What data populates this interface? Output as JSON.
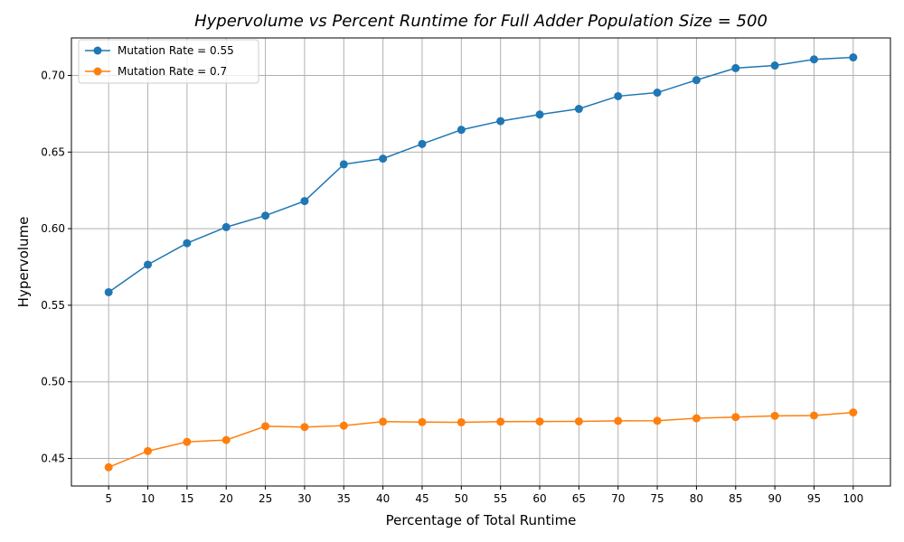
{
  "chart_data": {
    "type": "line",
    "title": "Hypervolume vs Percent Runtime for Full Adder Population Size = 500",
    "xlabel": "Percentage of Total Runtime",
    "ylabel": "Hypervolume",
    "x": [
      5,
      10,
      15,
      20,
      25,
      30,
      35,
      40,
      45,
      50,
      55,
      60,
      65,
      70,
      75,
      80,
      85,
      90,
      95,
      100
    ],
    "xticks": [
      "5",
      "10",
      "15",
      "20",
      "25",
      "30",
      "35",
      "40",
      "45",
      "50",
      "55",
      "60",
      "65",
      "70",
      "75",
      "80",
      "85",
      "90",
      "95",
      "100"
    ],
    "yticks": [
      "0.45",
      "0.50",
      "0.55",
      "0.60",
      "0.65",
      "0.70"
    ],
    "ytick_values": [
      0.45,
      0.5,
      0.55,
      0.6,
      0.65,
      0.7
    ],
    "xlim": [
      0.25,
      104.75
    ],
    "ylim": [
      0.432,
      0.7245
    ],
    "grid": true,
    "legend_position": "top-left",
    "series": [
      {
        "name": "Mutation Rate = 0.55",
        "color": "#1f77b4",
        "values": [
          0.5585,
          0.5765,
          0.5905,
          0.601,
          0.6085,
          0.618,
          0.642,
          0.6457,
          0.6553,
          0.6645,
          0.6702,
          0.6745,
          0.6782,
          0.6865,
          0.6888,
          0.697,
          0.7048,
          0.7065,
          0.7105,
          0.7118
        ]
      },
      {
        "name": "Mutation Rate = 0.7",
        "color": "#ff7f0e",
        "values": [
          0.4442,
          0.4548,
          0.4608,
          0.462,
          0.471,
          0.4705,
          0.4714,
          0.474,
          0.4737,
          0.4736,
          0.474,
          0.4741,
          0.4742,
          0.4745,
          0.4746,
          0.4762,
          0.477,
          0.4778,
          0.478,
          0.48
        ]
      }
    ]
  }
}
